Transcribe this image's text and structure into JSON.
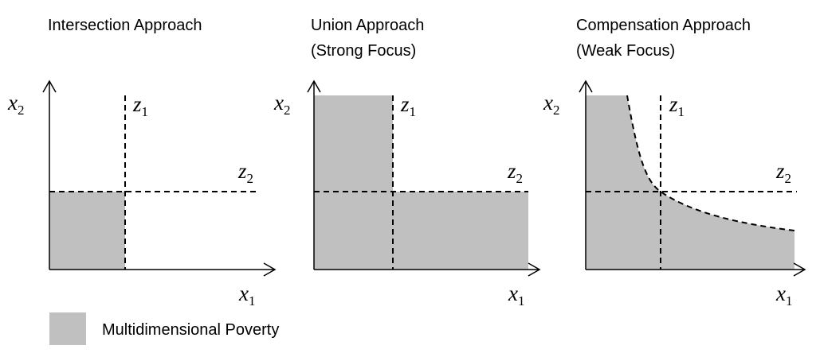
{
  "panels": [
    {
      "title": [
        "Intersection Approach"
      ],
      "y_axis": {
        "var": "x",
        "sub": "2"
      },
      "x_axis": {
        "var": "x",
        "sub": "1"
      },
      "vline": {
        "var": "z",
        "sub": "1"
      },
      "hline": {
        "var": "z",
        "sub": "2"
      }
    },
    {
      "title": [
        "Union Approach",
        "(Strong Focus)"
      ],
      "y_axis": {
        "var": "x",
        "sub": "2"
      },
      "x_axis": {
        "var": "x",
        "sub": "1"
      },
      "vline": {
        "var": "z",
        "sub": "1"
      },
      "hline": {
        "var": "z",
        "sub": "2"
      }
    },
    {
      "title": [
        "Compensation Approach",
        "(Weak Focus)"
      ],
      "y_axis": {
        "var": "x",
        "sub": "2"
      },
      "x_axis": {
        "var": "x",
        "sub": "1"
      },
      "vline": {
        "var": "z",
        "sub": "1"
      },
      "hline": {
        "var": "z",
        "sub": "2"
      }
    }
  ],
  "legend": {
    "label": "Multidimensional Poverty"
  }
}
